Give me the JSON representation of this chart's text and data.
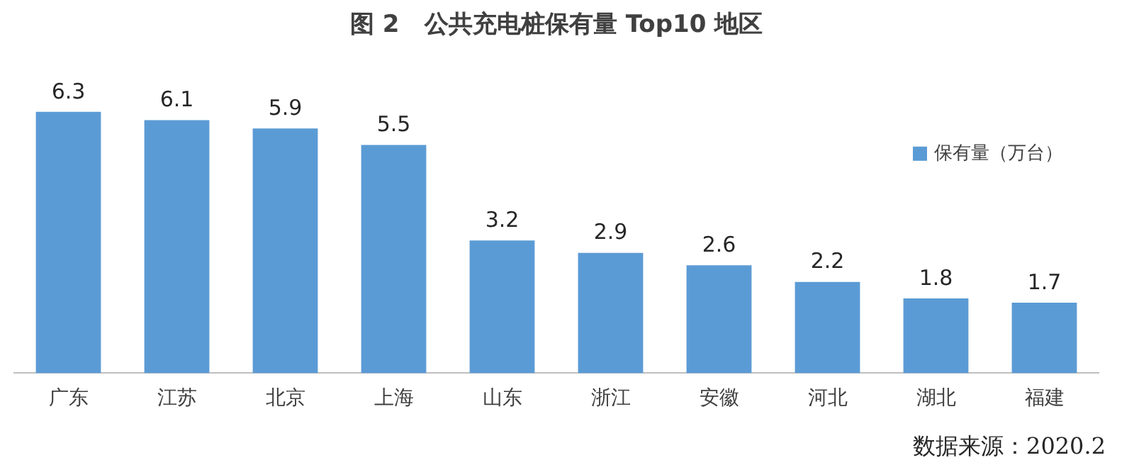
{
  "chart_data": {
    "type": "bar",
    "title": "图 2   公共充电桩保有量 Top10 地区",
    "categories": [
      "广东",
      "江苏",
      "北京",
      "上海",
      "山东",
      "浙江",
      "安徽",
      "河北",
      "湖北",
      "福建"
    ],
    "series": [
      {
        "name": "保有量（万台）",
        "color": "#5b9bd5",
        "values": [
          6.3,
          6.1,
          5.9,
          5.5,
          3.2,
          2.9,
          2.6,
          2.2,
          1.8,
          1.7
        ]
      }
    ],
    "data_labels": true,
    "grid": false,
    "legend": "top right",
    "annotations": [
      "数据来源：2020.2"
    ]
  }
}
